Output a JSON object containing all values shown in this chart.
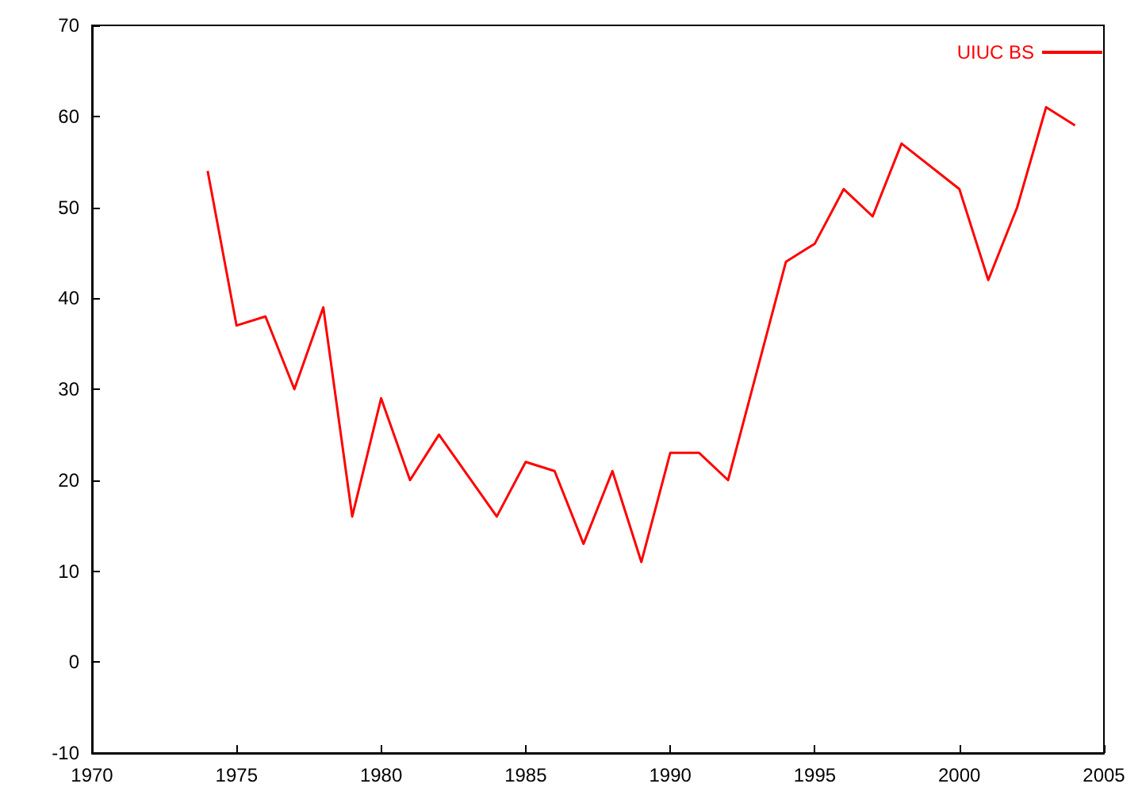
{
  "chart_data": {
    "type": "line",
    "x": [
      1974,
      1975,
      1976,
      1977,
      1978,
      1979,
      1980,
      1981,
      1982,
      1984,
      1985,
      1986,
      1987,
      1988,
      1989,
      1990,
      1991,
      1992,
      1994,
      1995,
      1996,
      1997,
      1998,
      2000,
      2001,
      2002,
      2003,
      2004
    ],
    "series": [
      {
        "name": "UIUC BS",
        "color": "#ff0000",
        "values": [
          54,
          37,
          38,
          30,
          39,
          16,
          29,
          20,
          25,
          16,
          22,
          21,
          13,
          21,
          11,
          23,
          23,
          20,
          44,
          46,
          52,
          49,
          57,
          52,
          42,
          50,
          61,
          59
        ]
      }
    ],
    "xlim": [
      1970,
      2005
    ],
    "xticks": [
      1970,
      1975,
      1980,
      1985,
      1990,
      1995,
      2000,
      2005
    ],
    "ylim": [
      -10,
      70
    ],
    "yticks": [
      -10,
      0,
      10,
      20,
      30,
      40,
      50,
      60,
      70
    ],
    "grid": false,
    "legend": "top right",
    "marker": "none",
    "line_style": "solid"
  }
}
